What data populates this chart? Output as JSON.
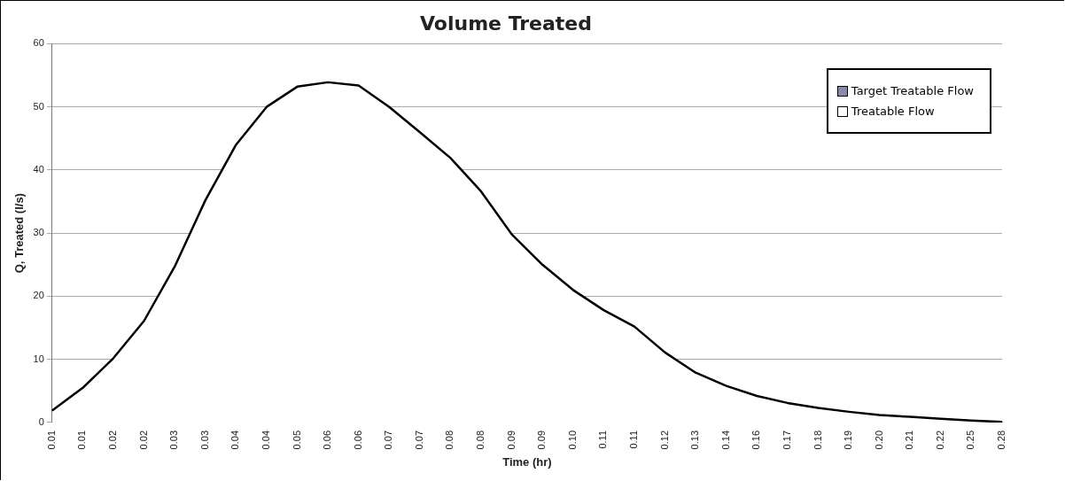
{
  "chart_data": {
    "type": "area",
    "title": "Volume Treated",
    "xlabel": "Time (hr)",
    "ylabel": "Q, Treated (l/s)",
    "categories": [
      "0.01",
      "0.01",
      "0.02",
      "0.02",
      "0.03",
      "0.03",
      "0.04",
      "0.04",
      "0.05",
      "0.06",
      "0.06",
      "0.07",
      "0.07",
      "0.08",
      "0.08",
      "0.09",
      "0.09",
      "0.10",
      "0.11",
      "0.11",
      "0.12",
      "0.13",
      "0.14",
      "0.16",
      "0.17",
      "0.18",
      "0.19",
      "0.20",
      "0.21",
      "0.22",
      "0.25",
      "0.28"
    ],
    "series": [
      {
        "name": "Target Treatable Flow",
        "color": "#8a8aa8",
        "values": [
          null,
          null,
          null,
          null,
          null,
          null,
          null,
          null,
          null,
          null,
          null,
          null,
          null,
          null,
          null,
          null,
          null,
          null,
          null,
          null,
          null,
          null,
          null,
          null,
          null,
          null,
          null,
          null,
          null,
          null,
          null,
          null
        ]
      },
      {
        "name": "Treatable Flow",
        "color": "#000000",
        "values": [
          1.9,
          5.5,
          10.2,
          16.1,
          24.7,
          35.2,
          44.0,
          50.0,
          53.2,
          53.9,
          53.4,
          50.0,
          46.0,
          41.9,
          36.6,
          29.8,
          25.0,
          21.0,
          17.8,
          15.2,
          11.1,
          7.9,
          5.8,
          4.2,
          3.1,
          2.3,
          1.7,
          1.2,
          0.9,
          0.6,
          0.3,
          0.1
        ]
      }
    ],
    "ylim": [
      0,
      60
    ],
    "yticks": [
      0,
      10,
      20,
      30,
      40,
      50,
      60
    ],
    "grid": "y",
    "legend": "top right"
  }
}
